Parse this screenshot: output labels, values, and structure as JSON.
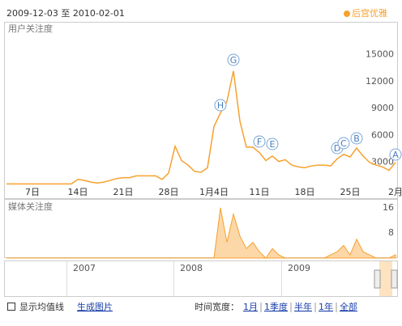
{
  "header": {
    "date_range": "2009-12-03 至 2010-02-01"
  },
  "chart_data": [
    {
      "type": "line",
      "title": "用户关注度",
      "categories": [
        null,
        null,
        null,
        null,
        "7日",
        null,
        null,
        null,
        null,
        null,
        null,
        "14日",
        null,
        null,
        null,
        null,
        null,
        null,
        "21日",
        null,
        null,
        null,
        null,
        null,
        null,
        "28日",
        null,
        null,
        null,
        null,
        null,
        null,
        "1月4日",
        null,
        null,
        null,
        null,
        null,
        null,
        "11日",
        null,
        null,
        null,
        null,
        null,
        null,
        "18日",
        null,
        null,
        null,
        null,
        null,
        null,
        "25日",
        null,
        null,
        null,
        null,
        null,
        null,
        "2月"
      ],
      "series": [
        {
          "name": "后宫优雅",
          "color": "#f7a12e",
          "values": [
            600,
            600,
            600,
            600,
            600,
            600,
            600,
            600,
            600,
            600,
            600,
            1100,
            1000,
            800,
            700,
            800,
            1000,
            1200,
            1300,
            1300,
            1500,
            1500,
            1500,
            1500,
            1100,
            1800,
            4800,
            3200,
            2700,
            2000,
            1900,
            2400,
            7000,
            8500,
            9800,
            13200,
            7600,
            4700,
            4700,
            4100,
            3200,
            3700,
            3100,
            3300,
            2700,
            2500,
            2400,
            2600,
            2700,
            2700,
            2600,
            3400,
            3900,
            3600,
            4600,
            3700,
            3000,
            2700,
            2500,
            2100,
            3000
          ]
        }
      ],
      "annotations": [
        "H",
        "G",
        "F",
        "E",
        "D",
        "C",
        "B",
        "A"
      ],
      "ylim": [
        0,
        17500
      ],
      "yticks": [
        3000,
        6000,
        9000,
        12000,
        15000
      ]
    },
    {
      "type": "area",
      "title": "媒体关注度",
      "series": [
        {
          "color": "#f7a12e",
          "values": [
            0,
            0,
            0,
            0,
            0,
            0,
            0,
            0,
            0,
            0,
            0,
            0,
            0,
            0,
            0,
            0,
            0,
            0,
            0,
            0,
            0,
            0,
            0,
            0,
            0,
            0,
            0,
            0,
            0,
            0,
            0,
            0,
            0,
            16,
            5,
            14,
            7,
            3,
            5,
            2,
            0,
            3,
            1,
            0,
            0,
            0,
            0,
            0,
            0,
            0,
            1,
            2,
            4,
            1,
            6,
            2,
            1,
            0,
            0,
            0,
            1
          ]
        }
      ],
      "ylim": [
        0,
        18
      ],
      "yticks": [
        8,
        16
      ]
    }
  ],
  "timeline": {
    "years": [
      "2007",
      "2008",
      "2009"
    ]
  },
  "controls": {
    "average_line": "显示均值线",
    "export": "生成图片",
    "width_label": "时间宽度：",
    "widths": [
      "1月",
      "1季度",
      "半年",
      "1年",
      "全部"
    ]
  }
}
